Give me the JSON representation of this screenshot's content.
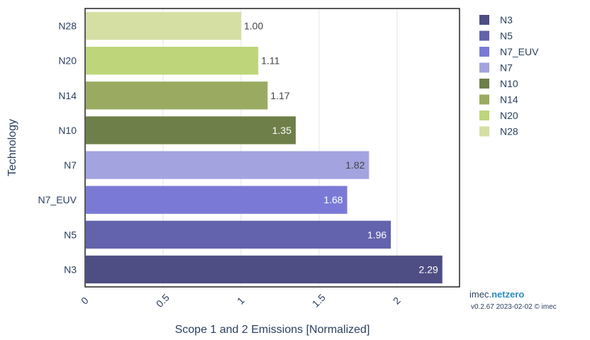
{
  "chart_data": {
    "type": "bar",
    "orientation": "horizontal",
    "categories": [
      "N28",
      "N20",
      "N14",
      "N10",
      "N7",
      "N7_EUV",
      "N5",
      "N3"
    ],
    "values": [
      1.0,
      1.11,
      1.17,
      1.35,
      1.82,
      1.68,
      1.96,
      2.29
    ],
    "value_labels": [
      "1.00",
      "1.11",
      "1.17",
      "1.35",
      "1.82",
      "1.68",
      "1.96",
      "2.29"
    ],
    "colors": [
      "#d5dfa4",
      "#bed57a",
      "#9aab61",
      "#6e7f49",
      "#a3a3e0",
      "#7a7ad6",
      "#6262ad",
      "#4e4e84"
    ],
    "label_colors": [
      "#444444",
      "#444444",
      "#444444",
      "#ffffff",
      "#444444",
      "#ffffff",
      "#ffffff",
      "#ffffff"
    ],
    "xlabel": "Scope 1 and 2 Emissions [Normalized]",
    "ylabel": "Technology",
    "xlim": [
      0,
      2.4
    ],
    "xticks": [
      0,
      0.5,
      1,
      1.5,
      2
    ],
    "xtick_labels": [
      "0",
      "0.5",
      "1",
      "1.5",
      "2"
    ],
    "grid": true,
    "legend": {
      "placement": "right",
      "entries": [
        {
          "name": "N3",
          "color": "#4e4e84"
        },
        {
          "name": "N5",
          "color": "#6262ad"
        },
        {
          "name": "N7_EUV",
          "color": "#7a7ad6"
        },
        {
          "name": "N7",
          "color": "#a3a3e0"
        },
        {
          "name": "N10",
          "color": "#6e7f49"
        },
        {
          "name": "N14",
          "color": "#9aab61"
        },
        {
          "name": "N20",
          "color": "#bed57a"
        },
        {
          "name": "N28",
          "color": "#d5dfa4"
        }
      ]
    }
  },
  "branding": {
    "prefix": "imec.",
    "accent": "netzero",
    "version": "v0.2.67 2023-02-02 © imec"
  }
}
